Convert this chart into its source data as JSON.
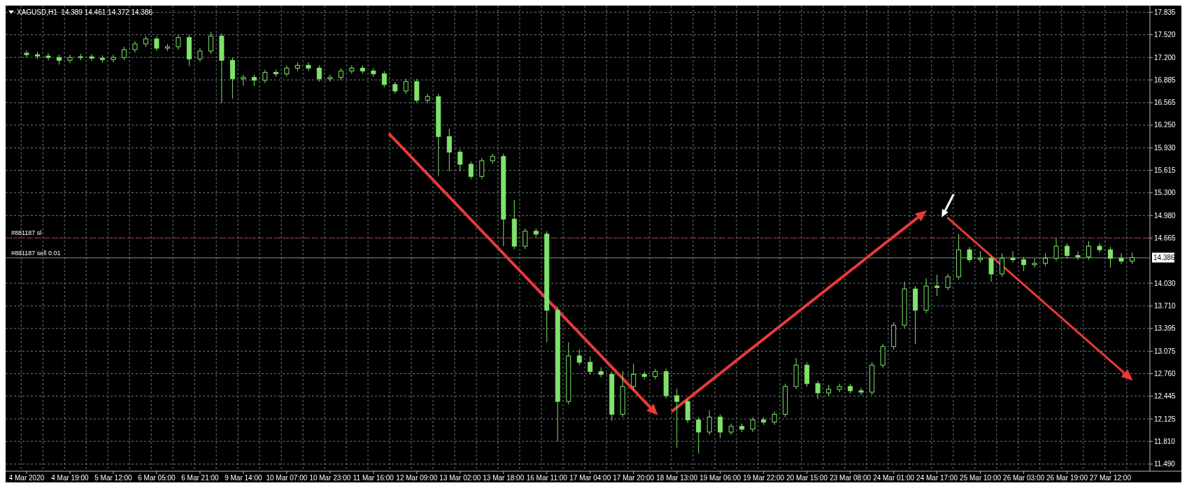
{
  "chart_data": {
    "type": "candlestick",
    "title": "XAGUSD,H1  14.389 14.461 14.372 14.386",
    "color": "#7ee36b",
    "grid": true,
    "categories": [
      "4 Mar 2020",
      null,
      null,
      null,
      "4 Mar 19:00",
      null,
      null,
      null,
      "5 Mar 12:00",
      null,
      null,
      null,
      "6 Mar 05:00",
      null,
      null,
      null,
      "6 Mar 21:00",
      null,
      null,
      null,
      "9 Mar 14:00",
      null,
      null,
      null,
      "10 Mar 07:00",
      null,
      null,
      null,
      "10 Mar 23:00",
      null,
      null,
      null,
      "11 Mar 16:00",
      null,
      null,
      null,
      "12 Mar 09:00",
      null,
      null,
      null,
      "13 Mar 02:00",
      null,
      null,
      null,
      "13 Mar 18:00",
      null,
      null,
      null,
      "16 Mar 11:00",
      null,
      null,
      null,
      "17 Mar 04:00",
      null,
      null,
      null,
      "17 Mar 20:00",
      null,
      null,
      null,
      "18 Mar 13:00",
      null,
      null,
      null,
      "19 Mar 06:00",
      null,
      null,
      null,
      "19 Mar 22:00",
      null,
      null,
      null,
      "20 Mar 15:00",
      null,
      null,
      null,
      "23 Mar 08:00",
      null,
      null,
      null,
      "24 Mar 01:00",
      null,
      null,
      null,
      "24 Mar 17:00",
      null,
      null,
      null,
      "25 Mar 10:00",
      null,
      null,
      null,
      "26 Mar 03:00",
      null,
      null,
      null,
      "26 Mar 19:00",
      null,
      null,
      null,
      "27 Mar 12:00",
      null,
      null
    ],
    "ohlc": [
      [
        17.26,
        17.3,
        17.2,
        17.24
      ],
      [
        17.24,
        17.28,
        17.18,
        17.22
      ],
      [
        17.22,
        17.26,
        17.16,
        17.2
      ],
      [
        17.2,
        17.24,
        17.1,
        17.16
      ],
      [
        17.16,
        17.24,
        17.12,
        17.2
      ],
      [
        17.2,
        17.25,
        17.16,
        17.21
      ],
      [
        17.21,
        17.25,
        17.15,
        17.19
      ],
      [
        17.19,
        17.23,
        17.13,
        17.17
      ],
      [
        17.17,
        17.24,
        17.13,
        17.2
      ],
      [
        17.2,
        17.35,
        17.16,
        17.31
      ],
      [
        17.31,
        17.43,
        17.27,
        17.39
      ],
      [
        17.39,
        17.5,
        17.35,
        17.46
      ],
      [
        17.46,
        17.5,
        17.29,
        17.33
      ],
      [
        17.33,
        17.39,
        17.29,
        17.35
      ],
      [
        17.35,
        17.52,
        17.31,
        17.48
      ],
      [
        17.48,
        17.52,
        17.08,
        17.18
      ],
      [
        17.18,
        17.33,
        17.14,
        17.29
      ],
      [
        17.29,
        17.56,
        17.25,
        17.5
      ],
      [
        17.5,
        17.54,
        16.56,
        17.16
      ],
      [
        17.16,
        17.2,
        16.62,
        16.9
      ],
      [
        16.9,
        16.96,
        16.8,
        16.92
      ],
      [
        16.92,
        16.96,
        16.8,
        16.88
      ],
      [
        16.88,
        17.03,
        16.84,
        16.99
      ],
      [
        16.99,
        17.03,
        16.93,
        16.97
      ],
      [
        16.97,
        17.09,
        16.93,
        17.05
      ],
      [
        17.05,
        17.13,
        17.01,
        17.09
      ],
      [
        17.09,
        17.13,
        17.01,
        17.05
      ],
      [
        17.05,
        17.09,
        16.86,
        16.9
      ],
      [
        16.9,
        16.96,
        16.86,
        16.92
      ],
      [
        16.92,
        17.05,
        16.88,
        17.01
      ],
      [
        17.01,
        17.09,
        16.97,
        17.05
      ],
      [
        17.05,
        17.09,
        16.97,
        17.01
      ],
      [
        17.01,
        17.05,
        16.93,
        16.97
      ],
      [
        16.97,
        17.01,
        16.78,
        16.82
      ],
      [
        16.82,
        16.86,
        16.69,
        16.73
      ],
      [
        16.73,
        16.9,
        16.69,
        16.86
      ],
      [
        16.86,
        16.9,
        16.56,
        16.6
      ],
      [
        16.6,
        16.69,
        16.56,
        16.65
      ],
      [
        16.65,
        16.69,
        15.53,
        16.09
      ],
      [
        16.09,
        16.2,
        15.6,
        15.87
      ],
      [
        15.87,
        15.91,
        15.6,
        15.7
      ],
      [
        15.7,
        15.74,
        15.49,
        15.53
      ],
      [
        15.53,
        15.79,
        15.49,
        15.75
      ],
      [
        15.75,
        15.85,
        15.71,
        15.81
      ],
      [
        15.81,
        15.85,
        14.55,
        14.93
      ],
      [
        14.93,
        15.2,
        14.51,
        14.55
      ],
      [
        14.55,
        14.8,
        14.51,
        14.76
      ],
      [
        14.76,
        14.8,
        14.68,
        14.72
      ],
      [
        14.72,
        14.76,
        13.2,
        13.65
      ],
      [
        13.65,
        13.7,
        11.81,
        12.37
      ],
      [
        12.37,
        13.2,
        12.33,
        13.01
      ],
      [
        13.01,
        13.1,
        12.88,
        12.92
      ],
      [
        12.92,
        13.0,
        12.75,
        12.79
      ],
      [
        12.79,
        12.85,
        12.71,
        12.75
      ],
      [
        12.75,
        12.79,
        12.1,
        12.19
      ],
      [
        12.19,
        12.8,
        12.15,
        12.58
      ],
      [
        12.58,
        12.9,
        12.54,
        12.75
      ],
      [
        12.75,
        12.79,
        12.68,
        12.72
      ],
      [
        12.72,
        12.83,
        12.68,
        12.79
      ],
      [
        12.79,
        12.83,
        12.41,
        12.45
      ],
      [
        12.45,
        12.55,
        11.72,
        12.37
      ],
      [
        12.37,
        12.41,
        12.07,
        12.11
      ],
      [
        12.11,
        12.15,
        11.64,
        11.94
      ],
      [
        11.94,
        12.25,
        11.9,
        12.15
      ],
      [
        12.15,
        12.19,
        11.85,
        11.94
      ],
      [
        11.94,
        12.06,
        11.9,
        12.02
      ],
      [
        12.02,
        12.06,
        11.94,
        11.98
      ],
      [
        11.98,
        12.15,
        11.94,
        12.11
      ],
      [
        12.11,
        12.15,
        12.04,
        12.08
      ],
      [
        12.08,
        12.23,
        12.04,
        12.19
      ],
      [
        12.19,
        12.62,
        12.15,
        12.58
      ],
      [
        12.58,
        12.98,
        12.54,
        12.88
      ],
      [
        12.88,
        12.92,
        12.58,
        12.62
      ],
      [
        12.62,
        12.66,
        12.4,
        12.49
      ],
      [
        12.49,
        12.6,
        12.45,
        12.54
      ],
      [
        12.54,
        12.62,
        12.5,
        12.58
      ],
      [
        12.58,
        12.62,
        12.48,
        12.52
      ],
      [
        12.52,
        12.56,
        12.46,
        12.5
      ],
      [
        12.5,
        12.92,
        12.46,
        12.88
      ],
      [
        12.88,
        13.18,
        12.84,
        13.14
      ],
      [
        13.14,
        13.48,
        13.1,
        13.44
      ],
      [
        13.44,
        14.05,
        13.4,
        13.95
      ],
      [
        13.95,
        13.99,
        13.18,
        13.65
      ],
      [
        13.65,
        14.1,
        13.61,
        13.99
      ],
      [
        13.99,
        14.15,
        13.85,
        13.97
      ],
      [
        13.97,
        14.16,
        13.93,
        14.12
      ],
      [
        14.12,
        14.72,
        14.08,
        14.5
      ],
      [
        14.5,
        14.54,
        14.32,
        14.36
      ],
      [
        14.36,
        14.48,
        14.32,
        14.38
      ],
      [
        14.38,
        14.42,
        14.05,
        14.16
      ],
      [
        14.16,
        14.45,
        14.12,
        14.38
      ],
      [
        14.38,
        14.48,
        14.32,
        14.36
      ],
      [
        14.36,
        14.4,
        14.2,
        14.29
      ],
      [
        14.29,
        14.38,
        14.25,
        14.31
      ],
      [
        14.31,
        14.45,
        14.27,
        14.38
      ],
      [
        14.38,
        14.66,
        14.34,
        14.55
      ],
      [
        14.55,
        14.59,
        14.38,
        14.42
      ],
      [
        14.42,
        14.48,
        14.36,
        14.4
      ],
      [
        14.4,
        14.62,
        14.36,
        14.55
      ],
      [
        14.55,
        14.59,
        14.46,
        14.5
      ],
      [
        14.5,
        14.54,
        14.25,
        14.38
      ],
      [
        14.38,
        14.45,
        14.3,
        14.34
      ],
      [
        14.34,
        14.46,
        14.3,
        14.39
      ]
    ],
    "ylim": [
      11.39,
      17.85
    ],
    "yticks": [
      {
        "value": 17.835,
        "label": "17.835"
      },
      {
        "value": 17.52,
        "label": "17.520"
      },
      {
        "value": 17.2,
        "label": "17.200"
      },
      16.885,
      16.565,
      {
        "value": 16.25,
        "label": "16.250"
      },
      {
        "value": 15.93,
        "label": "15.930"
      },
      15.615,
      {
        "value": 15.3,
        "label": "15.300"
      },
      {
        "value": 14.98,
        "label": "14.980"
      },
      14.665,
      {
        "value": 14.03,
        "label": "14.030"
      },
      {
        "value": 13.71,
        "label": "13.710"
      },
      13.395,
      13.075,
      {
        "value": 12.76,
        "label": "12.760"
      },
      12.445,
      12.125,
      {
        "value": 11.81,
        "label": "11.810"
      },
      {
        "value": 11.49,
        "label": "11.490"
      }
    ],
    "ref_lines": [
      {
        "axis": "y",
        "value": 14.665,
        "label": "#881187 sl",
        "color": "#a83a3a",
        "line_style": "dashed"
      },
      {
        "axis": "y",
        "value": 14.386,
        "label": "#881187 sell 0.01",
        "color": "#7a9a7a",
        "line_style": "solid"
      }
    ],
    "annotations": [
      "14.386"
    ]
  }
}
